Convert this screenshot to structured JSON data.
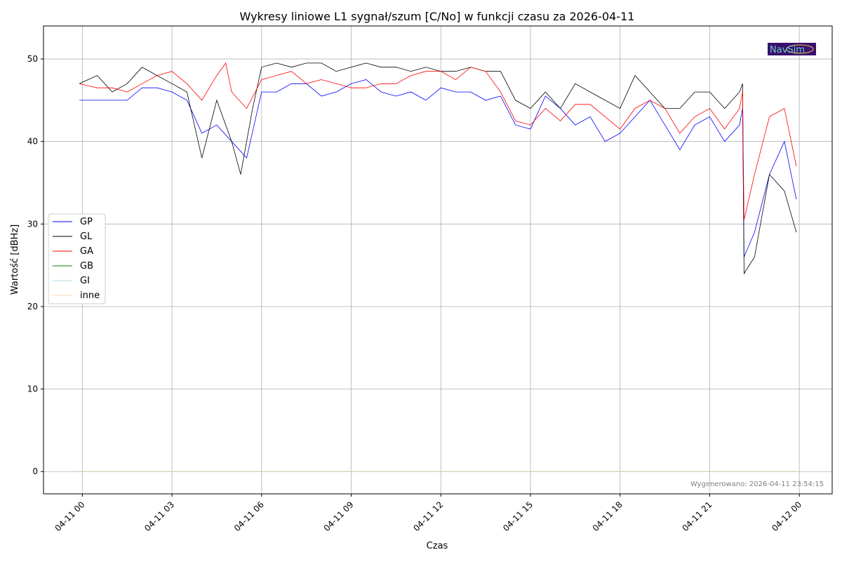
{
  "chart_data": {
    "type": "line",
    "title": "Wykresy liniowe L1 sygnał/szum [C/No] w funkcji czasu za 2026-04-11",
    "xlabel": "Czas",
    "ylabel": "Wartość [dBHz]",
    "x_units": "hours since 2026-04-11 00:00",
    "xlim": [
      -1.3,
      25.1
    ],
    "ylim": [
      -2.7,
      54
    ],
    "xticks": [
      0,
      3,
      6,
      9,
      12,
      15,
      18,
      21,
      24
    ],
    "xtick_labels": [
      "04-11 00",
      "04-11 03",
      "04-11 06",
      "04-11 09",
      "04-11 12",
      "04-11 15",
      "04-11 18",
      "04-11 21",
      "04-12 00"
    ],
    "yticks": [
      0,
      10,
      20,
      30,
      40,
      50
    ],
    "ytick_labels": [
      "0",
      "10",
      "20",
      "30",
      "40",
      "50"
    ],
    "grid": true,
    "legend_position": "center-left",
    "annotation": "Wygenerowano: 2026-04-11 23:54:15",
    "logo_text": "NavSim",
    "series": [
      {
        "name": "GP",
        "color": "#0000ff",
        "points": [
          [
            -0.1,
            45
          ],
          [
            0.5,
            45
          ],
          [
            1,
            45
          ],
          [
            1.5,
            45
          ],
          [
            2,
            46.5
          ],
          [
            2.5,
            46.5
          ],
          [
            3,
            46
          ],
          [
            3.5,
            45
          ],
          [
            4,
            41
          ],
          [
            4.5,
            42
          ],
          [
            5,
            40
          ],
          [
            5.5,
            38
          ],
          [
            6,
            46
          ],
          [
            6.5,
            46
          ],
          [
            7,
            47
          ],
          [
            7.5,
            47
          ],
          [
            8,
            45.5
          ],
          [
            8.5,
            46
          ],
          [
            9,
            47
          ],
          [
            9.5,
            47.5
          ],
          [
            10,
            46
          ],
          [
            10.5,
            45.5
          ],
          [
            11,
            46
          ],
          [
            11.5,
            45
          ],
          [
            12,
            46.5
          ],
          [
            12.5,
            46
          ],
          [
            13,
            46
          ],
          [
            13.5,
            45
          ],
          [
            14,
            45.5
          ],
          [
            14.5,
            42
          ],
          [
            15,
            41.5
          ],
          [
            15.5,
            45.5
          ],
          [
            16,
            44
          ],
          [
            16.5,
            42
          ],
          [
            17,
            43
          ],
          [
            17.5,
            40
          ],
          [
            18,
            41
          ],
          [
            18.5,
            43
          ],
          [
            19,
            45
          ],
          [
            19.5,
            42
          ],
          [
            20,
            39
          ],
          [
            20.5,
            42
          ],
          [
            21,
            43
          ],
          [
            21.5,
            40
          ],
          [
            22,
            42
          ],
          [
            22.1,
            44
          ],
          [
            22.15,
            26
          ],
          [
            22.5,
            29
          ],
          [
            23,
            36
          ],
          [
            23.5,
            40
          ],
          [
            23.9,
            33
          ]
        ]
      },
      {
        "name": "GL",
        "color": "#000000",
        "points": [
          [
            -0.1,
            47
          ],
          [
            0.5,
            48
          ],
          [
            1,
            46
          ],
          [
            1.5,
            47
          ],
          [
            2,
            49
          ],
          [
            2.5,
            48
          ],
          [
            3,
            47
          ],
          [
            3.5,
            46
          ],
          [
            4,
            38
          ],
          [
            4.5,
            45
          ],
          [
            5,
            40
          ],
          [
            5.3,
            36
          ],
          [
            5.7,
            44
          ],
          [
            6,
            49
          ],
          [
            6.5,
            49.5
          ],
          [
            7,
            49
          ],
          [
            7.5,
            49.5
          ],
          [
            8,
            49.5
          ],
          [
            8.5,
            48.5
          ],
          [
            9,
            49
          ],
          [
            9.5,
            49.5
          ],
          [
            10,
            49
          ],
          [
            10.5,
            49
          ],
          [
            11,
            48.5
          ],
          [
            11.5,
            49
          ],
          [
            12,
            48.5
          ],
          [
            12.5,
            48.5
          ],
          [
            13,
            49
          ],
          [
            13.5,
            48.5
          ],
          [
            14,
            48.5
          ],
          [
            14.5,
            45
          ],
          [
            15,
            44
          ],
          [
            15.5,
            46
          ],
          [
            16,
            44
          ],
          [
            16.5,
            47
          ],
          [
            17,
            46
          ],
          [
            17.5,
            45
          ],
          [
            18,
            44
          ],
          [
            18.5,
            48
          ],
          [
            19,
            46
          ],
          [
            19.5,
            44
          ],
          [
            20,
            44
          ],
          [
            20.5,
            46
          ],
          [
            21,
            46
          ],
          [
            21.5,
            44
          ],
          [
            22,
            46
          ],
          [
            22.1,
            47
          ],
          [
            22.15,
            24
          ],
          [
            22.5,
            26
          ],
          [
            23,
            36
          ],
          [
            23.5,
            34
          ],
          [
            23.9,
            29
          ]
        ]
      },
      {
        "name": "GA",
        "color": "#ff0000",
        "points": [
          [
            -0.1,
            47
          ],
          [
            0.5,
            46.5
          ],
          [
            1,
            46.5
          ],
          [
            1.5,
            46
          ],
          [
            2,
            47
          ],
          [
            2.5,
            48
          ],
          [
            3,
            48.5
          ],
          [
            3.5,
            47
          ],
          [
            4,
            45
          ],
          [
            4.5,
            48
          ],
          [
            4.8,
            49.5
          ],
          [
            5,
            46
          ],
          [
            5.5,
            44
          ],
          [
            6,
            47.5
          ],
          [
            6.5,
            48
          ],
          [
            7,
            48.5
          ],
          [
            7.5,
            47
          ],
          [
            8,
            47.5
          ],
          [
            8.5,
            47
          ],
          [
            9,
            46.5
          ],
          [
            9.5,
            46.5
          ],
          [
            10,
            47
          ],
          [
            10.5,
            47
          ],
          [
            11,
            48
          ],
          [
            11.5,
            48.5
          ],
          [
            12,
            48.5
          ],
          [
            12.5,
            47.5
          ],
          [
            13,
            49
          ],
          [
            13.5,
            48.5
          ],
          [
            14,
            46
          ],
          [
            14.5,
            42.5
          ],
          [
            15,
            42
          ],
          [
            15.5,
            44
          ],
          [
            16,
            42.5
          ],
          [
            16.5,
            44.5
          ],
          [
            17,
            44.5
          ],
          [
            17.5,
            43
          ],
          [
            18,
            41.5
          ],
          [
            18.5,
            44
          ],
          [
            19,
            45
          ],
          [
            19.5,
            44
          ],
          [
            20,
            41
          ],
          [
            20.5,
            43
          ],
          [
            21,
            44
          ],
          [
            21.5,
            41.5
          ],
          [
            22,
            44
          ],
          [
            22.1,
            46
          ],
          [
            22.15,
            30.5
          ],
          [
            22.5,
            36
          ],
          [
            23,
            43
          ],
          [
            23.5,
            44
          ],
          [
            23.9,
            37
          ]
        ]
      },
      {
        "name": "GB",
        "color": "#008000",
        "points": [
          [
            -0.1,
            0
          ],
          [
            23.9,
            0
          ]
        ]
      },
      {
        "name": "GI",
        "color": "#add8e6",
        "points": [
          [
            -0.1,
            0
          ],
          [
            23.9,
            0
          ]
        ]
      },
      {
        "name": "inne",
        "color": "#ffdab9",
        "points": [
          [
            -0.1,
            0
          ],
          [
            23.9,
            0
          ]
        ]
      }
    ]
  }
}
